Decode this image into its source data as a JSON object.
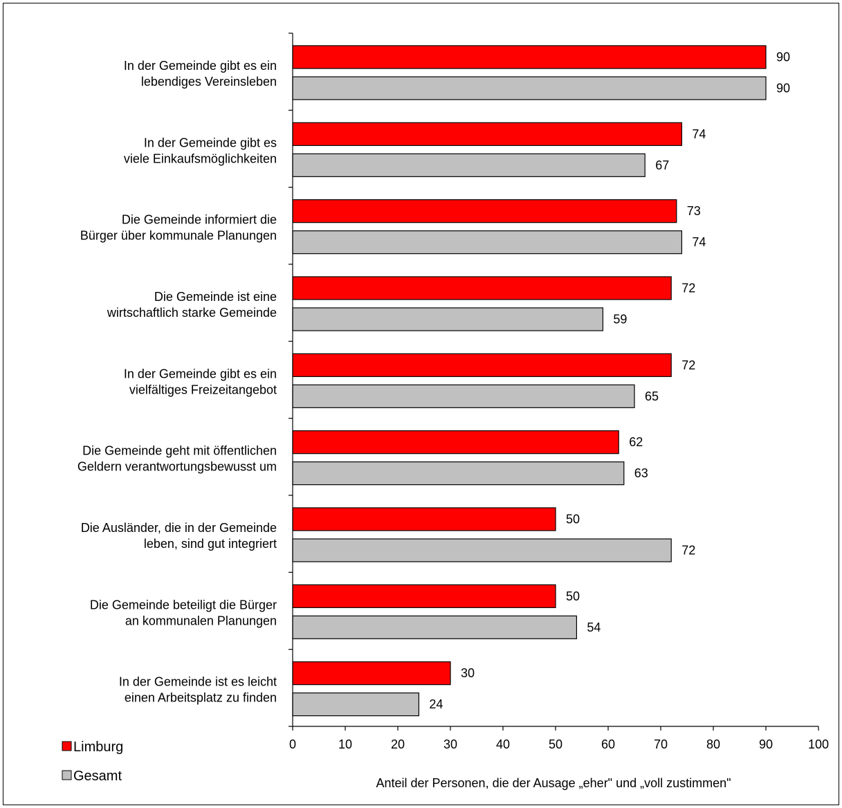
{
  "chart_data": {
    "type": "bar",
    "orientation": "horizontal",
    "categories": [
      [
        "In der Gemeinde gibt es ein",
        "lebendiges Vereinsleben"
      ],
      [
        "In der Gemeinde gibt es",
        "viele Einkaufsmöglichkeiten"
      ],
      [
        "Die Gemeinde informiert die",
        "Bürger über kommunale Planungen"
      ],
      [
        "Die Gemeinde ist eine",
        "wirtschaftlich starke Gemeinde"
      ],
      [
        "In der Gemeinde gibt es ein",
        "vielfältiges Freizeitangebot"
      ],
      [
        "Die Gemeinde geht mit öffentlichen",
        "Geldern verantwortungsbewusst um"
      ],
      [
        "Die Ausländer, die in der Gemeinde",
        "leben, sind gut integriert"
      ],
      [
        "Die Gemeinde beteiligt die Bürger",
        "an kommunalen Planungen"
      ],
      [
        "In der Gemeinde ist es leicht",
        "einen Arbeitsplatz zu finden"
      ]
    ],
    "series": [
      {
        "name": "Limburg",
        "color": "#ff0000",
        "values": [
          90,
          74,
          73,
          72,
          72,
          62,
          50,
          50,
          30
        ]
      },
      {
        "name": "Gesamt",
        "color": "#c0c0c0",
        "values": [
          90,
          67,
          74,
          59,
          65,
          63,
          72,
          54,
          24
        ]
      }
    ],
    "xlabel": "Anteil der Personen, die der Ausage „eher\" und „voll zustimmen\"",
    "xlim": [
      0,
      100
    ],
    "xticks": [
      0,
      10,
      20,
      30,
      40,
      50,
      60,
      70,
      80,
      90,
      100
    ],
    "grid": false,
    "legend_position": "bottom-left",
    "data_labels": true
  }
}
